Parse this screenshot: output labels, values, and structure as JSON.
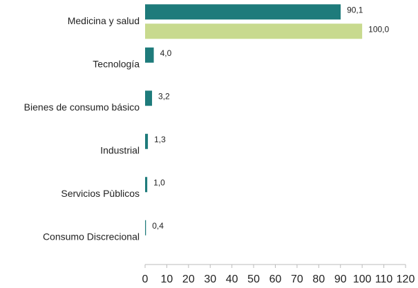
{
  "chart_data": {
    "type": "hbar",
    "categories": [
      "Medicina y salud",
      "Tecnología",
      "Bienes de consumo básico",
      "Industrial",
      "Servicios Pùblicos",
      "Consumo Discrecional"
    ],
    "series": [
      {
        "color": "#1e7b7b",
        "values": [
          90.1,
          4.0,
          3.2,
          1.3,
          1.0,
          0.4
        ],
        "value_labels": [
          "90,1",
          "4,0",
          "3,2",
          "1,3",
          "1,0",
          "0,4"
        ]
      },
      {
        "color": "#c8da8e",
        "values": [
          100.0,
          null,
          null,
          null,
          null,
          null
        ],
        "value_labels": [
          "100,0",
          null,
          null,
          null,
          null,
          null
        ]
      }
    ],
    "xlim": [
      0,
      120
    ],
    "xticks": [
      0,
      10,
      20,
      30,
      40,
      50,
      60,
      70,
      80,
      90,
      100,
      110,
      120
    ]
  }
}
